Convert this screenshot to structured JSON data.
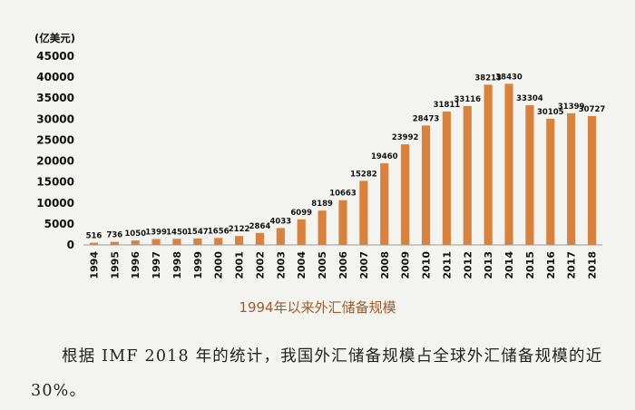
{
  "chart_data": {
    "type": "bar",
    "unit_label": "(亿美元)",
    "categories": [
      "1994",
      "1995",
      "1996",
      "1997",
      "1998",
      "1999",
      "2000",
      "2001",
      "2002",
      "2003",
      "2004",
      "2005",
      "2006",
      "2007",
      "2008",
      "2009",
      "2010",
      "2011",
      "2012",
      "2013",
      "2014",
      "2015",
      "2016",
      "2017",
      "2018"
    ],
    "values": [
      516,
      736,
      1050,
      1399,
      1450,
      1547,
      1656,
      2122,
      2864,
      4033,
      6099,
      8189,
      10663,
      15282,
      19460,
      23992,
      28473,
      31811,
      33116,
      38213,
      38430,
      33304,
      30105,
      31399,
      30727
    ],
    "ylim": [
      0,
      45000
    ],
    "yticks": [
      0,
      5000,
      10000,
      15000,
      20000,
      25000,
      30000,
      35000,
      40000,
      45000
    ],
    "grid": false,
    "bar_color": "#d9823e"
  },
  "caption": "1994年以来外汇储备规模",
  "paragraph": "根据 IMF 2018 年的统计，我国外汇储备规模占全球外汇储备规模的近 30%。"
}
